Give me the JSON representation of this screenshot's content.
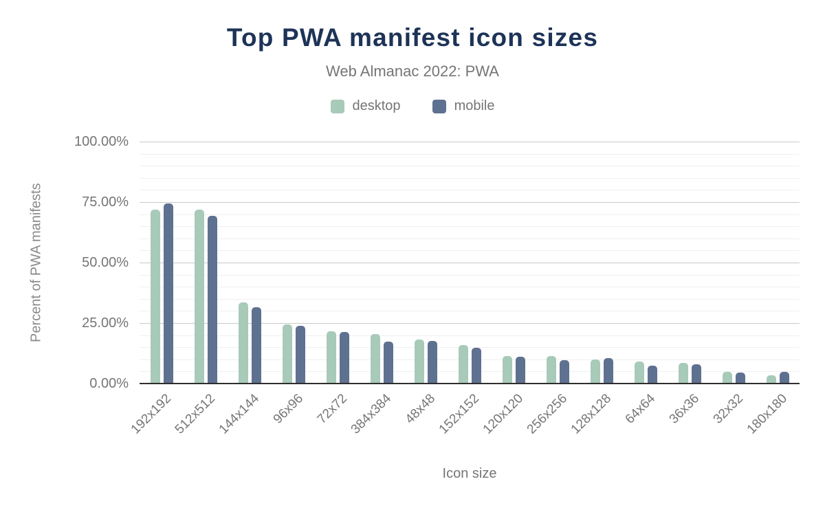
{
  "title": "Top PWA manifest icon sizes",
  "subtitle": "Web Almanac 2022: PWA",
  "legend": [
    {
      "label": "desktop",
      "color": "#a8cab8"
    },
    {
      "label": "mobile",
      "color": "#5f7190"
    }
  ],
  "y_axis": {
    "title": "Percent of PWA manifests",
    "ticks": [
      {
        "value": 100,
        "label": "100.00%"
      },
      {
        "value": 75,
        "label": "75.00%"
      },
      {
        "value": 50,
        "label": "50.00%"
      },
      {
        "value": 25,
        "label": "25.00%"
      },
      {
        "value": 0,
        "label": "0.00%"
      }
    ]
  },
  "x_axis": {
    "title": "Icon size"
  },
  "colors": {
    "title_text": "#1d3357",
    "muted_text": "#757575",
    "major_gridline": "#c9c9c9",
    "minor_gridline": "#efefef",
    "axis_line": "#2e2e2e"
  },
  "chart_data": {
    "type": "bar",
    "title": "Top PWA manifest icon sizes",
    "subtitle": "Web Almanac 2022: PWA",
    "categories": [
      "192x192",
      "512x512",
      "144x144",
      "96x96",
      "72x72",
      "384x384",
      "48x48",
      "152x152",
      "120x120",
      "256x256",
      "128x128",
      "64x64",
      "36x36",
      "32x32",
      "180x180"
    ],
    "series": [
      {
        "name": "desktop",
        "color": "#a8cab8",
        "values": [
          72.0,
          72.0,
          33.4,
          24.5,
          21.6,
          20.6,
          18.1,
          16.0,
          11.5,
          11.4,
          9.9,
          9.2,
          8.5,
          4.8,
          3.4
        ]
      },
      {
        "name": "mobile",
        "color": "#5f7190",
        "values": [
          74.3,
          69.3,
          31.6,
          23.9,
          21.4,
          17.2,
          17.5,
          14.8,
          11.0,
          9.8,
          10.4,
          7.4,
          8.0,
          4.6,
          4.8
        ]
      }
    ],
    "xlabel": "Icon size",
    "ylabel": "Percent of PWA manifests",
    "ylim": [
      0,
      100
    ],
    "y_major_step": 25,
    "y_minor_step": 5,
    "value_unit": "percent",
    "grid": "horizontal",
    "legend_position": "top"
  }
}
